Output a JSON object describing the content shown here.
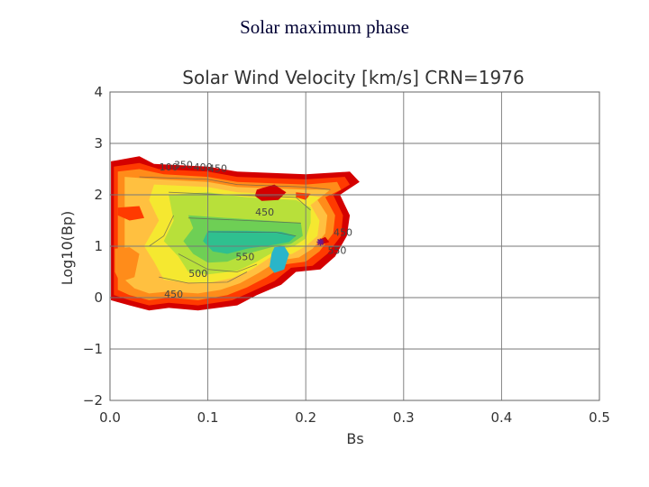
{
  "slide": {
    "title": "Solar maximum phase"
  },
  "chart_data": {
    "type": "heatmap",
    "title": "Solar Wind Velocity [km/s] CRN=1976",
    "xlabel": "Bs",
    "ylabel": "Log10(Bp)",
    "xlim": [
      0.0,
      0.5
    ],
    "ylim": [
      -2,
      4
    ],
    "x_ticks": [
      "0.0",
      "0.1",
      "0.2",
      "0.3",
      "0.4",
      "0.5"
    ],
    "y_ticks": [
      "−2",
      "−1",
      "0",
      "1",
      "2",
      "3",
      "4"
    ],
    "grid": true,
    "color_scale": {
      "min_color": "#d40000",
      "colors": [
        "#d40000",
        "#ff3a00",
        "#ff8c1a",
        "#ffc040",
        "#f5e830",
        "#b8e03a",
        "#6ecf55",
        "#2fc08f",
        "#2ab5c9"
      ]
    },
    "regions": [
      {
        "level": 0,
        "polygon": [
          [
            0.001,
            2.65
          ],
          [
            0.03,
            2.75
          ],
          [
            0.045,
            2.6
          ],
          [
            0.1,
            2.55
          ],
          [
            0.13,
            2.45
          ],
          [
            0.2,
            2.4
          ],
          [
            0.245,
            2.45
          ],
          [
            0.255,
            2.25
          ],
          [
            0.235,
            2.0
          ],
          [
            0.245,
            1.6
          ],
          [
            0.242,
            1.2
          ],
          [
            0.23,
            0.8
          ],
          [
            0.215,
            0.55
          ],
          [
            0.19,
            0.5
          ],
          [
            0.175,
            0.25
          ],
          [
            0.15,
            0.05
          ],
          [
            0.13,
            -0.15
          ],
          [
            0.09,
            -0.25
          ],
          [
            0.06,
            -0.2
          ],
          [
            0.04,
            -0.25
          ],
          [
            0.02,
            -0.15
          ],
          [
            0.001,
            -0.05
          ]
        ]
      },
      {
        "level": 1,
        "polygon": [
          [
            0.004,
            2.55
          ],
          [
            0.03,
            2.62
          ],
          [
            0.05,
            2.5
          ],
          [
            0.1,
            2.45
          ],
          [
            0.13,
            2.35
          ],
          [
            0.2,
            2.3
          ],
          [
            0.24,
            2.35
          ],
          [
            0.245,
            2.2
          ],
          [
            0.228,
            2.0
          ],
          [
            0.238,
            1.6
          ],
          [
            0.236,
            1.2
          ],
          [
            0.222,
            0.85
          ],
          [
            0.207,
            0.62
          ],
          [
            0.185,
            0.58
          ],
          [
            0.168,
            0.32
          ],
          [
            0.145,
            0.12
          ],
          [
            0.125,
            -0.05
          ],
          [
            0.09,
            -0.15
          ],
          [
            0.06,
            -0.1
          ],
          [
            0.04,
            -0.15
          ],
          [
            0.02,
            -0.05
          ],
          [
            0.004,
            0.05
          ]
        ]
      },
      {
        "level": 2,
        "polygon": [
          [
            0.008,
            2.45
          ],
          [
            0.03,
            2.5
          ],
          [
            0.055,
            2.4
          ],
          [
            0.1,
            2.35
          ],
          [
            0.13,
            2.25
          ],
          [
            0.2,
            2.2
          ],
          [
            0.232,
            2.25
          ],
          [
            0.236,
            2.1
          ],
          [
            0.22,
            1.95
          ],
          [
            0.23,
            1.6
          ],
          [
            0.228,
            1.25
          ],
          [
            0.214,
            0.9
          ],
          [
            0.2,
            0.7
          ],
          [
            0.18,
            0.65
          ],
          [
            0.16,
            0.4
          ],
          [
            0.14,
            0.2
          ],
          [
            0.12,
            0.05
          ],
          [
            0.09,
            -0.05
          ],
          [
            0.06,
            0.0
          ],
          [
            0.04,
            -0.05
          ],
          [
            0.02,
            0.05
          ],
          [
            0.008,
            0.15
          ]
        ]
      },
      {
        "level": 3,
        "polygon": [
          [
            0.015,
            2.35
          ],
          [
            0.05,
            2.3
          ],
          [
            0.1,
            2.25
          ],
          [
            0.13,
            2.15
          ],
          [
            0.2,
            2.1
          ],
          [
            0.225,
            2.1
          ],
          [
            0.212,
            1.9
          ],
          [
            0.222,
            1.6
          ],
          [
            0.22,
            1.25
          ],
          [
            0.207,
            0.95
          ],
          [
            0.193,
            0.78
          ],
          [
            0.172,
            0.72
          ],
          [
            0.152,
            0.48
          ],
          [
            0.133,
            0.28
          ],
          [
            0.113,
            0.15
          ],
          [
            0.09,
            0.08
          ],
          [
            0.06,
            0.12
          ],
          [
            0.04,
            0.08
          ],
          [
            0.025,
            0.18
          ],
          [
            0.015,
            0.35
          ]
        ]
      },
      {
        "level": 4,
        "polygon": [
          [
            0.045,
            2.2
          ],
          [
            0.1,
            2.15
          ],
          [
            0.13,
            2.05
          ],
          [
            0.2,
            2.0
          ],
          [
            0.215,
            1.95
          ],
          [
            0.205,
            1.8
          ],
          [
            0.214,
            1.5
          ],
          [
            0.212,
            1.2
          ],
          [
            0.2,
            1.0
          ],
          [
            0.186,
            0.85
          ],
          [
            0.165,
            0.8
          ],
          [
            0.145,
            0.55
          ],
          [
            0.125,
            0.38
          ],
          [
            0.1,
            0.28
          ],
          [
            0.075,
            0.3
          ],
          [
            0.055,
            0.35
          ],
          [
            0.045,
            0.7
          ],
          [
            0.035,
            1.0
          ],
          [
            0.05,
            1.5
          ],
          [
            0.04,
            1.9
          ]
        ]
      },
      {
        "level": 5,
        "polygon": [
          [
            0.06,
            2.0
          ],
          [
            0.1,
            2.05
          ],
          [
            0.14,
            1.95
          ],
          [
            0.19,
            1.9
          ],
          [
            0.205,
            1.75
          ],
          [
            0.205,
            1.45
          ],
          [
            0.2,
            1.15
          ],
          [
            0.188,
            1.0
          ],
          [
            0.17,
            0.92
          ],
          [
            0.15,
            0.7
          ],
          [
            0.13,
            0.52
          ],
          [
            0.1,
            0.45
          ],
          [
            0.08,
            0.5
          ],
          [
            0.07,
            0.8
          ],
          [
            0.055,
            1.1
          ],
          [
            0.065,
            1.5
          ]
        ]
      },
      {
        "level": 6,
        "polygon": [
          [
            0.08,
            1.6
          ],
          [
            0.12,
            1.55
          ],
          [
            0.16,
            1.5
          ],
          [
            0.195,
            1.45
          ],
          [
            0.197,
            1.2
          ],
          [
            0.185,
            1.05
          ],
          [
            0.165,
            0.98
          ],
          [
            0.14,
            0.85
          ],
          [
            0.12,
            0.7
          ],
          [
            0.1,
            0.68
          ],
          [
            0.085,
            0.85
          ],
          [
            0.075,
            1.1
          ],
          [
            0.085,
            1.35
          ]
        ]
      },
      {
        "level": 7,
        "polygon": [
          [
            0.1,
            1.3
          ],
          [
            0.14,
            1.3
          ],
          [
            0.175,
            1.28
          ],
          [
            0.19,
            1.2
          ],
          [
            0.183,
            1.08
          ],
          [
            0.165,
            1.02
          ],
          [
            0.14,
            0.95
          ],
          [
            0.12,
            0.85
          ],
          [
            0.105,
            0.9
          ],
          [
            0.095,
            1.1
          ]
        ]
      },
      {
        "level": 8,
        "polygon": [
          [
            0.168,
            0.98
          ],
          [
            0.178,
            1.0
          ],
          [
            0.183,
            0.85
          ],
          [
            0.178,
            0.55
          ],
          [
            0.168,
            0.48
          ],
          [
            0.163,
            0.6
          ],
          [
            0.165,
            0.85
          ]
        ]
      },
      {
        "level": 1,
        "polygon": [
          [
            0.008,
            1.75
          ],
          [
            0.03,
            1.78
          ],
          [
            0.035,
            1.55
          ],
          [
            0.02,
            1.5
          ],
          [
            0.008,
            1.6
          ]
        ]
      },
      {
        "level": 2,
        "polygon": [
          [
            0.005,
            0.95
          ],
          [
            0.02,
            0.98
          ],
          [
            0.03,
            0.85
          ],
          [
            0.025,
            0.4
          ],
          [
            0.01,
            0.3
          ],
          [
            0.005,
            0.5
          ]
        ]
      },
      {
        "level": 0,
        "polygon": [
          [
            0.15,
            2.1
          ],
          [
            0.168,
            2.2
          ],
          [
            0.18,
            2.05
          ],
          [
            0.172,
            1.9
          ],
          [
            0.155,
            1.88
          ],
          [
            0.148,
            1.98
          ]
        ]
      },
      {
        "level": 1,
        "polygon": [
          [
            0.19,
            2.05
          ],
          [
            0.205,
            2.02
          ],
          [
            0.2,
            1.9
          ],
          [
            0.19,
            1.95
          ]
        ]
      },
      {
        "level": 0,
        "polygon": [
          [
            0.213,
            1.12
          ],
          [
            0.22,
            1.18
          ],
          [
            0.224,
            1.08
          ],
          [
            0.216,
            1.03
          ]
        ]
      }
    ],
    "contour_lines": [
      {
        "points": [
          [
            0.03,
            2.35
          ],
          [
            0.1,
            2.3
          ],
          [
            0.13,
            2.2
          ],
          [
            0.2,
            2.15
          ],
          [
            0.225,
            2.1
          ]
        ]
      },
      {
        "points": [
          [
            0.06,
            2.05
          ],
          [
            0.12,
            2.0
          ],
          [
            0.19,
            1.95
          ],
          [
            0.205,
            1.7
          ]
        ]
      },
      {
        "points": [
          [
            0.08,
            1.55
          ],
          [
            0.14,
            1.5
          ],
          [
            0.195,
            1.45
          ]
        ]
      },
      {
        "points": [
          [
            0.1,
            1.28
          ],
          [
            0.17,
            1.27
          ],
          [
            0.19,
            1.2
          ]
        ]
      },
      {
        "points": [
          [
            0.07,
            0.85
          ],
          [
            0.1,
            0.55
          ],
          [
            0.13,
            0.5
          ],
          [
            0.15,
            0.65
          ]
        ]
      },
      {
        "points": [
          [
            0.05,
            0.4
          ],
          [
            0.08,
            0.28
          ],
          [
            0.12,
            0.3
          ],
          [
            0.14,
            0.5
          ]
        ]
      },
      {
        "points": [
          [
            0.04,
            1.0
          ],
          [
            0.055,
            1.2
          ],
          [
            0.065,
            1.6
          ]
        ]
      }
    ],
    "contour_labels": [
      {
        "text": "100",
        "x": 0.06,
        "y": 2.47
      },
      {
        "text": "350",
        "x": 0.075,
        "y": 2.52
      },
      {
        "text": "400",
        "x": 0.095,
        "y": 2.47
      },
      {
        "text": "450",
        "x": 0.11,
        "y": 2.45
      },
      {
        "text": "450",
        "x": 0.158,
        "y": 1.6
      },
      {
        "text": "550",
        "x": 0.138,
        "y": 0.73
      },
      {
        "text": "500",
        "x": 0.09,
        "y": 0.4
      },
      {
        "text": "450",
        "x": 0.065,
        "y": 0.0
      },
      {
        "text": "450",
        "x": 0.238,
        "y": 1.2
      },
      {
        "text": "550",
        "x": 0.232,
        "y": 0.85
      }
    ],
    "marker": {
      "x": 0.215,
      "y": 1.08
    }
  }
}
